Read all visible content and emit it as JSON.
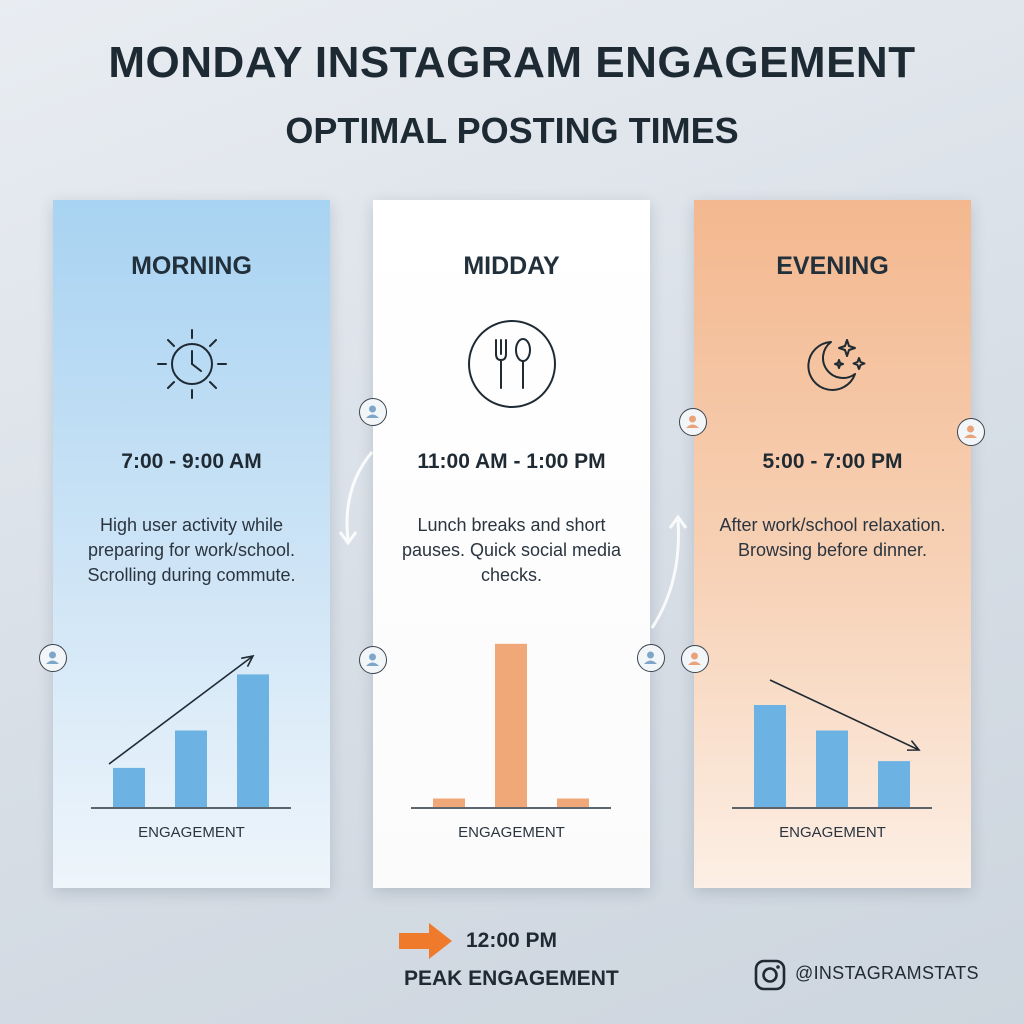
{
  "title": "MONDAY INSTAGRAM ENGAGEMENT",
  "subtitle": "OPTIMAL POSTING TIMES",
  "panels": [
    {
      "heading": "MORNING",
      "icon": "sun-clock-icon",
      "time": "7:00 - 9:00 AM",
      "description": "High user activity while preparing for work/school. Scrolling during commute.",
      "xlabel": "ENGAGEMENT"
    },
    {
      "heading": "MIDDAY",
      "icon": "fork-spoon-icon",
      "time": "11:00 AM - 1:00 PM",
      "description": "Lunch breaks and short pauses. Quick social media checks.",
      "xlabel": "ENGAGEMENT"
    },
    {
      "heading": "EVENING",
      "icon": "moon-stars-icon",
      "time": "5:00 - 7:00 PM",
      "description": "After work/school relaxation. Browsing before dinner.",
      "xlabel": "ENGAGEMENT"
    }
  ],
  "chart_data": [
    {
      "type": "bar",
      "title": "",
      "xlabel": "ENGAGEMENT",
      "ylabel": "",
      "values": [
        2.3,
        4.5,
        7.8
      ],
      "ylim": [
        0,
        10
      ],
      "trend": "up",
      "color": "#6cb2e3",
      "grid": false
    },
    {
      "type": "bar",
      "title": "",
      "xlabel": "ENGAGEMENT",
      "ylabel": "",
      "values": [
        0.5,
        9.6,
        0.5
      ],
      "ylim": [
        0,
        10
      ],
      "trend": "none",
      "color": "#f0a878",
      "grid": false
    },
    {
      "type": "bar",
      "title": "",
      "xlabel": "ENGAGEMENT",
      "ylabel": "",
      "values": [
        6.0,
        4.5,
        2.7
      ],
      "ylim": [
        0,
        10
      ],
      "trend": "down",
      "color": "#6cb2e3",
      "grid": false
    }
  ],
  "peak": {
    "time": "12:00 PM",
    "label": "PEAK ENGAGEMENT",
    "arrow_color": "#f07a2c"
  },
  "footer": {
    "handle": "@INSTAGRAMSTATS",
    "icon": "instagram-icon"
  },
  "colors": {
    "morning": "#a8d3f2",
    "midday": "#ffffff",
    "evening": "#f3b88f",
    "text": "#1f2a33"
  }
}
